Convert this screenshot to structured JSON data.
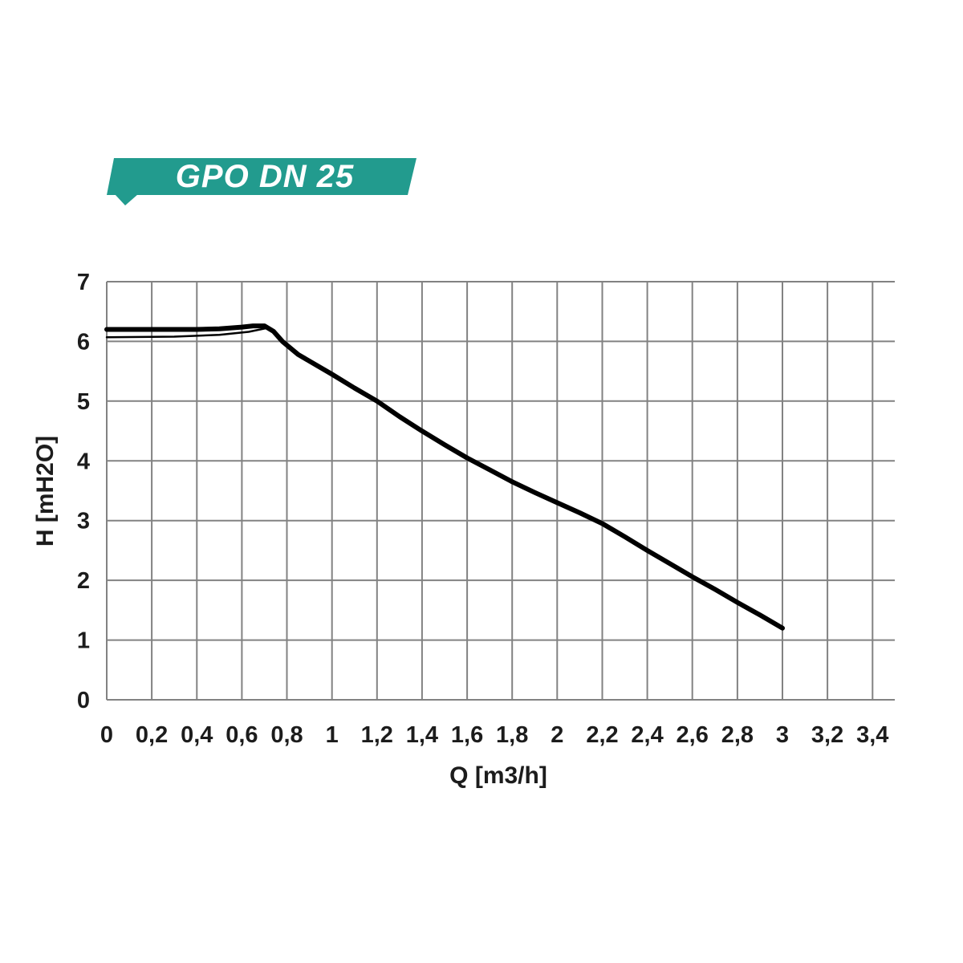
{
  "banner": {
    "label": "GPO DN 25",
    "background_color": "#229B8E",
    "text_color": "#FFFFFF"
  },
  "chart_data": {
    "type": "line",
    "title": "GPO DN 25",
    "xlabel": "Q [m3/h]",
    "ylabel": "H [mH2O]",
    "xlim": [
      0,
      3.4
    ],
    "ylim": [
      0,
      7
    ],
    "grid": true,
    "legend": "none",
    "grid_color": "#828282",
    "curve_color": "#000000",
    "x_tick_labels": [
      "0",
      "0,2",
      "0,4",
      "0,6",
      "0,8",
      "1",
      "1,2",
      "1,4",
      "1,6",
      "1,8",
      "2",
      "2,2",
      "2,4",
      "2,6",
      "2,8",
      "3",
      "3,2",
      "3,4"
    ],
    "x_tick_values": [
      0,
      0.2,
      0.4,
      0.6,
      0.8,
      1,
      1.2,
      1.4,
      1.6,
      1.8,
      2,
      2.2,
      2.4,
      2.6,
      2.8,
      3,
      3.2,
      3.4
    ],
    "y_tick_values": [
      0,
      1,
      2,
      3,
      4,
      5,
      6,
      7
    ],
    "series": [
      {
        "name": "head-curve",
        "points": [
          [
            0,
            6.2
          ],
          [
            0.2,
            6.2
          ],
          [
            0.4,
            6.2
          ],
          [
            0.5,
            6.21
          ],
          [
            0.6,
            6.24
          ],
          [
            0.65,
            6.26
          ],
          [
            0.7,
            6.26
          ],
          [
            0.74,
            6.17
          ],
          [
            0.78,
            6.0
          ],
          [
            0.85,
            5.78
          ],
          [
            1.0,
            5.45
          ],
          [
            1.1,
            5.22
          ],
          [
            1.2,
            5.0
          ],
          [
            1.3,
            4.74
          ],
          [
            1.4,
            4.5
          ],
          [
            1.5,
            4.27
          ],
          [
            1.6,
            4.05
          ],
          [
            1.7,
            3.85
          ],
          [
            1.8,
            3.65
          ],
          [
            1.9,
            3.47
          ],
          [
            2.0,
            3.3
          ],
          [
            2.1,
            3.13
          ],
          [
            2.2,
            2.95
          ],
          [
            2.3,
            2.73
          ],
          [
            2.4,
            2.5
          ],
          [
            2.5,
            2.28
          ],
          [
            2.6,
            2.06
          ],
          [
            2.7,
            1.85
          ],
          [
            2.8,
            1.63
          ],
          [
            2.9,
            1.42
          ],
          [
            3.0,
            1.2
          ]
        ]
      },
      {
        "name": "flat-companion-line",
        "points": [
          [
            0,
            6.07
          ],
          [
            0.3,
            6.08
          ],
          [
            0.5,
            6.11
          ],
          [
            0.63,
            6.16
          ],
          [
            0.72,
            6.23
          ]
        ]
      }
    ]
  }
}
